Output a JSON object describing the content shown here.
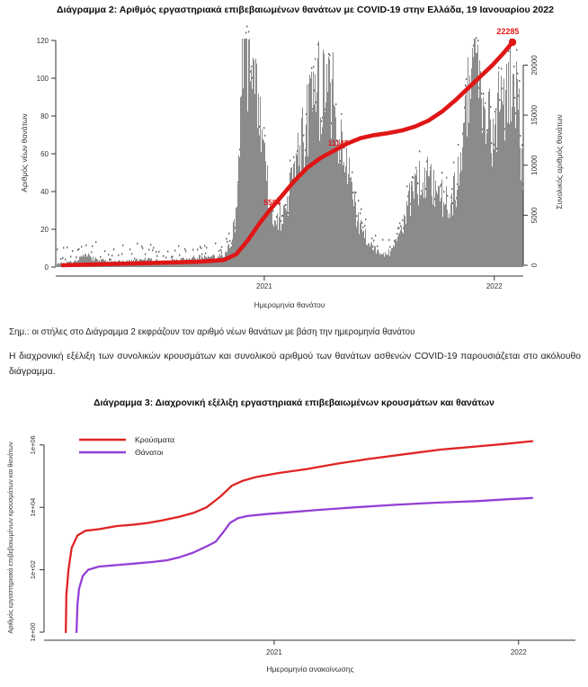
{
  "note": "Σημ.: οι στήλες στο Διάγραμμα 2 εκφράζουν τον αριθμό νέων θανάτων με βάση την ημερομηνία θανάτου",
  "paragraph": "Η διαχρονική εξέλιξη των συνολικών κρουσμάτων και συνολικού αριθμού των θανάτων ασθενών COVID-19 παρουσιάζεται στο ακόλουθο διάγραμμα.",
  "chart_data": [
    {
      "type": "bar",
      "title": "Διάγραμμα 2: Αριθμός εργαστηριακά επιβεβαιωμένων θανάτων με COVID-19 στην Ελλάδα, 19 Ιανουαρίου 2022",
      "xlabel": "Ημερομηνία θανάτου",
      "ylabel_left": "Αριθμός νέων θανάτων",
      "ylabel_right": "Συνολικός αριθμός θανάτων",
      "yleft_ticks": [
        0,
        20,
        40,
        60,
        80,
        100,
        120
      ],
      "yleft_lim": [
        0,
        120
      ],
      "yright_ticks": [
        0,
        5000,
        10000,
        15000,
        20000
      ],
      "yright_lim": [
        0,
        23000
      ],
      "x_ticks": [
        {
          "label": "2021",
          "f": 0.446
        },
        {
          "label": "2022",
          "f": 0.938
        }
      ],
      "bar_color": "#8b8b8b",
      "label_speck_color": "#4d4d4d",
      "line_color": "#e01616",
      "annotations": [
        {
          "text": "5584",
          "fx": 0.463,
          "value": 6000,
          "layer": "under"
        },
        {
          "text": "11145",
          "fx": 0.604,
          "value": 11950,
          "layer": "under"
        },
        {
          "text": "22285",
          "fx": 0.967,
          "value": 23100,
          "layer": "over"
        }
      ],
      "bars_profile": [
        [
          0.008,
          2
        ],
        [
          0.035,
          3
        ],
        [
          0.064,
          6
        ],
        [
          0.083,
          4
        ],
        [
          0.112,
          3
        ],
        [
          0.151,
          3
        ],
        [
          0.189,
          4
        ],
        [
          0.228,
          3
        ],
        [
          0.266,
          4
        ],
        [
          0.295,
          5
        ],
        [
          0.324,
          5
        ],
        [
          0.347,
          6
        ],
        [
          0.363,
          8
        ],
        [
          0.375,
          14
        ],
        [
          0.382,
          25
        ],
        [
          0.39,
          55
        ],
        [
          0.396,
          90
        ],
        [
          0.402,
          115
        ],
        [
          0.407,
          108
        ],
        [
          0.413,
          118
        ],
        [
          0.419,
          100
        ],
        [
          0.427,
          88
        ],
        [
          0.434,
          75
        ],
        [
          0.442,
          60
        ],
        [
          0.45,
          45
        ],
        [
          0.459,
          32
        ],
        [
          0.469,
          27
        ],
        [
          0.479,
          26
        ],
        [
          0.488,
          30
        ],
        [
          0.498,
          38
        ],
        [
          0.51,
          48
        ],
        [
          0.521,
          60
        ],
        [
          0.533,
          72
        ],
        [
          0.544,
          85
        ],
        [
          0.556,
          92
        ],
        [
          0.568,
          96
        ],
        [
          0.579,
          88
        ],
        [
          0.585,
          100
        ],
        [
          0.591,
          95
        ],
        [
          0.598,
          85
        ],
        [
          0.606,
          75
        ],
        [
          0.614,
          62
        ],
        [
          0.623,
          50
        ],
        [
          0.633,
          38
        ],
        [
          0.643,
          28
        ],
        [
          0.652,
          22
        ],
        [
          0.662,
          16
        ],
        [
          0.672,
          12
        ],
        [
          0.681,
          9
        ],
        [
          0.691,
          7
        ],
        [
          0.701,
          6
        ],
        [
          0.71,
          7
        ],
        [
          0.72,
          9
        ],
        [
          0.73,
          14
        ],
        [
          0.739,
          20
        ],
        [
          0.749,
          28
        ],
        [
          0.759,
          36
        ],
        [
          0.768,
          42
        ],
        [
          0.778,
          45
        ],
        [
          0.788,
          44
        ],
        [
          0.797,
          46
        ],
        [
          0.807,
          42
        ],
        [
          0.817,
          38
        ],
        [
          0.826,
          36
        ],
        [
          0.836,
          34
        ],
        [
          0.846,
          36
        ],
        [
          0.855,
          42
        ],
        [
          0.861,
          50
        ],
        [
          0.869,
          62
        ],
        [
          0.876,
          78
        ],
        [
          0.884,
          92
        ],
        [
          0.892,
          103
        ],
        [
          0.9,
          108
        ],
        [
          0.905,
          100
        ],
        [
          0.911,
          92
        ],
        [
          0.919,
          82
        ],
        [
          0.927,
          76
        ],
        [
          0.934,
          72
        ],
        [
          0.942,
          78
        ],
        [
          0.95,
          85
        ],
        [
          0.957,
          90
        ],
        [
          0.965,
          95
        ],
        [
          0.973,
          97
        ],
        [
          0.981,
          94
        ],
        [
          0.988,
          88
        ],
        [
          0.994,
          70
        ],
        [
          1.0,
          40
        ]
      ],
      "cumulative": [
        [
          0.015,
          0
        ],
        [
          0.17,
          190
        ],
        [
          0.305,
          350
        ],
        [
          0.359,
          520
        ],
        [
          0.386,
          1100
        ],
        [
          0.411,
          2500
        ],
        [
          0.436,
          4200
        ],
        [
          0.459,
          5584
        ],
        [
          0.483,
          6900
        ],
        [
          0.508,
          8300
        ],
        [
          0.537,
          9700
        ],
        [
          0.566,
          10700
        ],
        [
          0.595,
          11450
        ],
        [
          0.623,
          12150
        ],
        [
          0.652,
          12700
        ],
        [
          0.681,
          13000
        ],
        [
          0.71,
          13200
        ],
        [
          0.739,
          13450
        ],
        [
          0.768,
          13850
        ],
        [
          0.797,
          14450
        ],
        [
          0.826,
          15350
        ],
        [
          0.855,
          16500
        ],
        [
          0.88,
          17600
        ],
        [
          0.907,
          18800
        ],
        [
          0.934,
          20000
        ],
        [
          0.957,
          21150
        ],
        [
          0.977,
          22285
        ]
      ],
      "end_label_value": 22285
    },
    {
      "type": "line",
      "yscale": "log",
      "title": "Διάγραμμα 3: Διαχρονική εξέλιξη εργαστηριακά επιβεβαιωμένων κρουσμάτων και θανάτων",
      "xlabel": "Ημερομηνία ανακοίνωσης",
      "ylabel": "Αριθμός εργαστηριακά επιβεβαιωμένων κρουσμάτων και θανάτων",
      "y_ticks": [
        {
          "label": "1e+00",
          "d": 0
        },
        {
          "label": "1e+02",
          "d": 2
        },
        {
          "label": "1e+04",
          "d": 4
        },
        {
          "label": "1e+06",
          "d": 6
        }
      ],
      "x_ticks": [
        {
          "label": "2021",
          "f": 0.433
        },
        {
          "label": "2022",
          "f": 0.893
        }
      ],
      "legend": [
        {
          "label": "Κρούσματα",
          "color": "#e02424"
        },
        {
          "label": "Θάνατοι",
          "color": "#9340d5"
        }
      ],
      "series": [
        {
          "name": "Κρούσματα",
          "color": "#e02424",
          "points_log10": [
            [
              0.041,
              0
            ],
            [
              0.042,
              1.2
            ],
            [
              0.046,
              2.0
            ],
            [
              0.052,
              2.7
            ],
            [
              0.063,
              3.1
            ],
            [
              0.078,
              3.25
            ],
            [
              0.103,
              3.3
            ],
            [
              0.137,
              3.4
            ],
            [
              0.171,
              3.45
            ],
            [
              0.196,
              3.5
            ],
            [
              0.222,
              3.58
            ],
            [
              0.255,
              3.7
            ],
            [
              0.281,
              3.82
            ],
            [
              0.306,
              4.0
            ],
            [
              0.332,
              4.35
            ],
            [
              0.354,
              4.7
            ],
            [
              0.374,
              4.85
            ],
            [
              0.399,
              4.97
            ],
            [
              0.442,
              5.1
            ],
            [
              0.492,
              5.22
            ],
            [
              0.552,
              5.4
            ],
            [
              0.611,
              5.55
            ],
            [
              0.678,
              5.7
            ],
            [
              0.746,
              5.85
            ],
            [
              0.814,
              5.95
            ],
            [
              0.865,
              6.03
            ],
            [
              0.919,
              6.12
            ]
          ]
        },
        {
          "name": "Θάνατοι",
          "color": "#9340d5",
          "points_log10": [
            [
              0.061,
              0
            ],
            [
              0.063,
              0.9
            ],
            [
              0.066,
              1.4
            ],
            [
              0.073,
              1.8
            ],
            [
              0.083,
              2.0
            ],
            [
              0.103,
              2.1
            ],
            [
              0.137,
              2.15
            ],
            [
              0.171,
              2.2
            ],
            [
              0.205,
              2.25
            ],
            [
              0.23,
              2.3
            ],
            [
              0.255,
              2.4
            ],
            [
              0.281,
              2.55
            ],
            [
              0.306,
              2.75
            ],
            [
              0.323,
              2.9
            ],
            [
              0.337,
              3.2
            ],
            [
              0.35,
              3.5
            ],
            [
              0.365,
              3.65
            ],
            [
              0.382,
              3.72
            ],
            [
              0.416,
              3.78
            ],
            [
              0.459,
              3.84
            ],
            [
              0.518,
              3.92
            ],
            [
              0.585,
              4.0
            ],
            [
              0.661,
              4.08
            ],
            [
              0.738,
              4.15
            ],
            [
              0.814,
              4.2
            ],
            [
              0.873,
              4.26
            ],
            [
              0.919,
              4.3
            ]
          ]
        }
      ]
    }
  ]
}
